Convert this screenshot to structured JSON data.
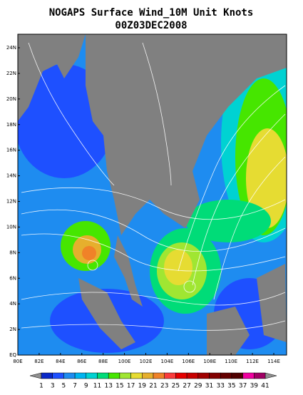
{
  "title": "NOGAPS Surface Wind_10M Unit Knots",
  "subtitle": "00Z03DEC2008",
  "y_labels": [
    "24N",
    "22N",
    "20N",
    "18N",
    "16N",
    "14N",
    "12N",
    "10N",
    "8N",
    "6N",
    "4N",
    "2N",
    "EQ"
  ],
  "x_labels": [
    "80E",
    "82E",
    "84E",
    "86E",
    "88E",
    "100E",
    "102E",
    "104E",
    "106E",
    "108E",
    "110E",
    "112E",
    "114E"
  ],
  "colorbar": {
    "levels": [
      1,
      3,
      5,
      7,
      9,
      11,
      13,
      15,
      17,
      19,
      21,
      23,
      25,
      27,
      29,
      31,
      33,
      35,
      37,
      39,
      41
    ],
    "colors": [
      "#0a28c8",
      "#1e50ff",
      "#1e8cf0",
      "#00b4f0",
      "#00d2d2",
      "#00dc78",
      "#46e600",
      "#a0e632",
      "#e6dc32",
      "#e6af2d",
      "#f08228",
      "#fa3c3c",
      "#e60000",
      "#c80000",
      "#a00000",
      "#820000",
      "#640000",
      "#500000",
      "#f000a0",
      "#a00064"
    ],
    "end_color": "#909090"
  }
}
